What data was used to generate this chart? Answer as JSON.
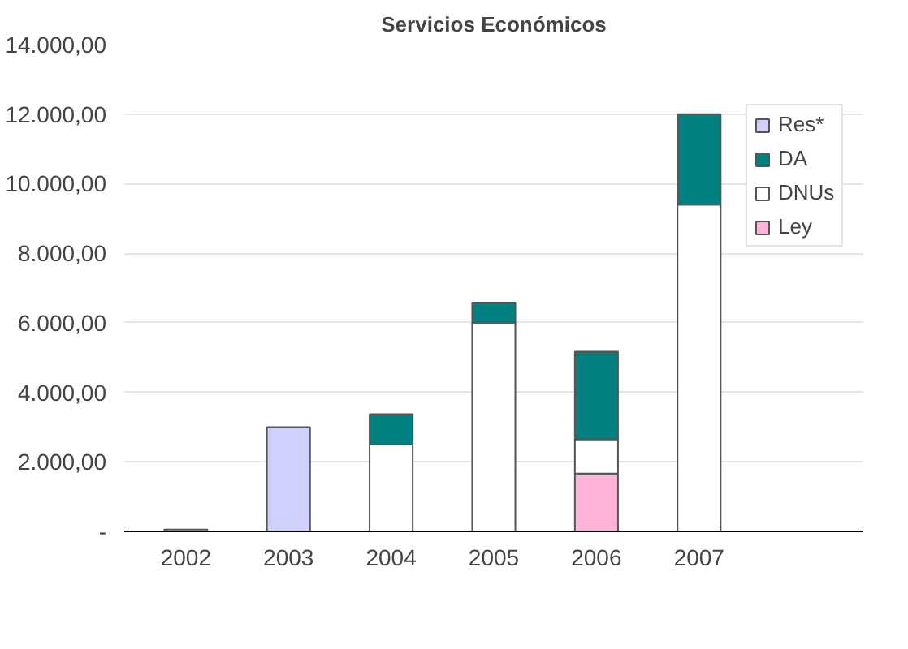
{
  "chart_data": {
    "type": "bar",
    "title": "Servicios Económicos",
    "stacked": true,
    "categories": [
      "2002",
      "2003",
      "2004",
      "2005",
      "2006",
      "2007"
    ],
    "series": [
      {
        "name": "Ley",
        "color": "#ffb3d9",
        "values": [
          null,
          null,
          null,
          null,
          1660,
          null
        ]
      },
      {
        "name": "DNUs",
        "color": "#ffffff",
        "values": [
          50,
          null,
          2500,
          6000,
          990,
          9400
        ]
      },
      {
        "name": "DA",
        "color": "#008080",
        "values": [
          null,
          null,
          870,
          580,
          2520,
          2600
        ]
      },
      {
        "name": "Res*",
        "color": "#d0d0ff",
        "values": [
          null,
          3000,
          null,
          null,
          null,
          null
        ]
      }
    ],
    "ylim": [
      0,
      14000
    ],
    "yticks": [
      {
        "value": 0,
        "label": "-"
      },
      {
        "value": 2000,
        "label": "2.000,00"
      },
      {
        "value": 4000,
        "label": "4.000,00"
      },
      {
        "value": 6000,
        "label": "6.000,00"
      },
      {
        "value": 8000,
        "label": "8.000,00"
      },
      {
        "value": 10000,
        "label": "10.000,00"
      },
      {
        "value": 12000,
        "label": "12.000,00"
      },
      {
        "value": 14000,
        "label": "14.000,00"
      }
    ],
    "grid": "y",
    "legend": "right"
  }
}
